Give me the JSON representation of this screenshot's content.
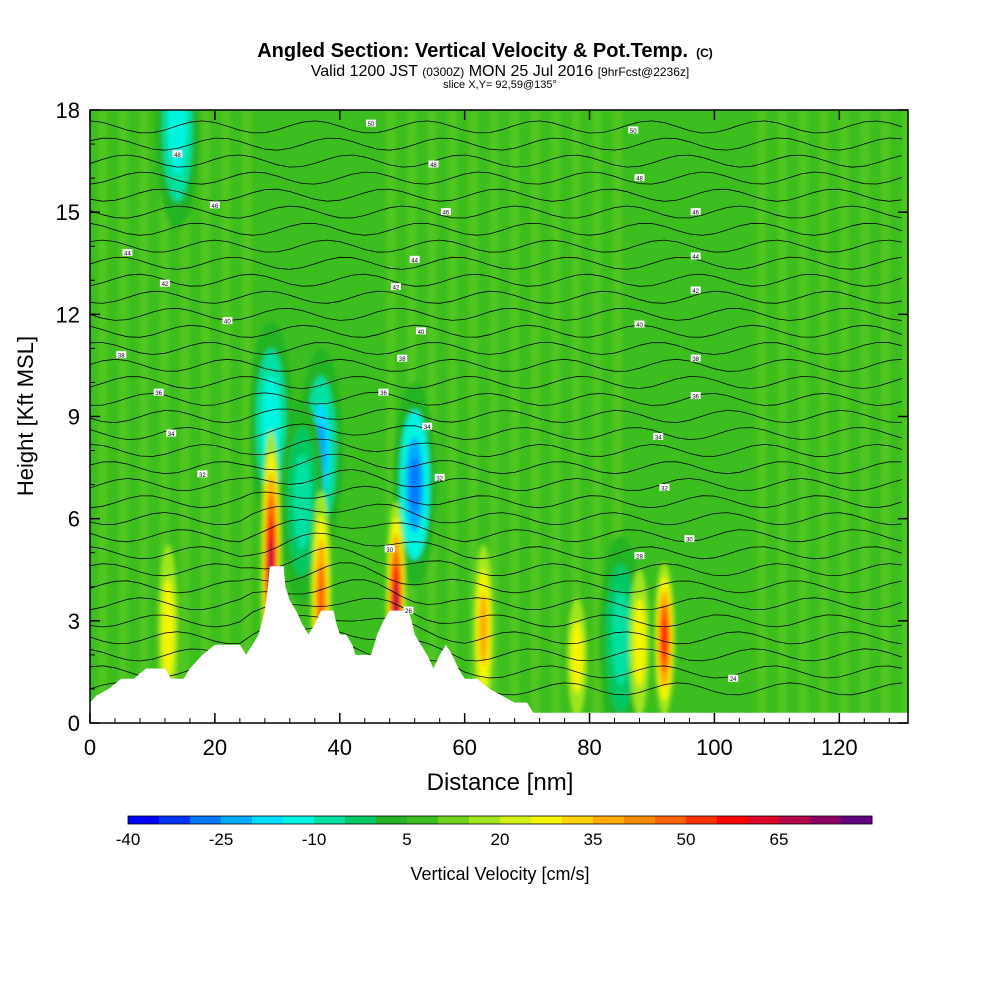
{
  "chart_data": {
    "type": "heatmap",
    "title": {
      "main": "Angled Section: Vertical Velocity & Pot.Temp.",
      "unit": "(C)"
    },
    "subtitle": {
      "valid": "Valid 1200 JST",
      "zulu": "(0300Z)",
      "date": "MON 25 Jul 2016",
      "forecast": "[9hrFcst@2236z]"
    },
    "slice_label": "slice X,Y= 92,59@135°",
    "xlabel": "Distance [nm]",
    "ylabel": "Height [Kft MSL]",
    "xlim": [
      0,
      131
    ],
    "ylim": [
      0,
      18
    ],
    "x_ticks": [
      "0",
      "20",
      "40",
      "60",
      "80",
      "100",
      "120"
    ],
    "y_ticks": [
      "0",
      "3",
      "6",
      "9",
      "12",
      "15",
      "18"
    ],
    "colorbar": {
      "label": "Vertical Velocity [cm/s]",
      "levels": [
        -40,
        -35,
        -30,
        -25,
        -20,
        -15,
        -10,
        -5,
        0,
        5,
        10,
        15,
        20,
        25,
        30,
        35,
        40,
        45,
        50,
        55,
        60,
        65,
        70,
        75
      ],
      "tick_labels": [
        "-40",
        "-25",
        "-10",
        "5",
        "20",
        "35",
        "50",
        "65"
      ],
      "colors": [
        "#0000ff",
        "#0033ff",
        "#0077ff",
        "#00aaff",
        "#00ddff",
        "#00f5e0",
        "#00e0a0",
        "#00c864",
        "#22b422",
        "#3cbe1e",
        "#6ed21e",
        "#a0e61e",
        "#d2f014",
        "#f5f500",
        "#ffd200",
        "#ffaa00",
        "#ff8c00",
        "#ff6400",
        "#ff3200",
        "#ff0000",
        "#dc0028",
        "#b40046",
        "#8c0064",
        "#640082"
      ]
    },
    "background_range": "0 to 5 cm/s",
    "updraft_cores": [
      {
        "x": 29,
        "top": 8.2,
        "peak": 65
      },
      {
        "x": 37,
        "top": 6.5,
        "peak": 45
      },
      {
        "x": 49,
        "top": 6.2,
        "peak": 65
      },
      {
        "x": 63,
        "top": 5.0,
        "peak": 40
      },
      {
        "x": 92,
        "top": 4.5,
        "peak": 55
      },
      {
        "x": 88,
        "top": 4.3,
        "peak": 30
      },
      {
        "x": 78,
        "top": 3.5,
        "peak": 25
      },
      {
        "x": 12.5,
        "top": 5.0,
        "peak": 25
      }
    ],
    "downdraft_regions": [
      {
        "x": 37,
        "y": 8.0,
        "min": -25
      },
      {
        "x": 52,
        "y": 7.0,
        "min": -30
      },
      {
        "x": 29,
        "y": 8.8,
        "min": -15
      },
      {
        "x": 34,
        "y": 6.5,
        "min": -10
      },
      {
        "x": 85,
        "y": 2.5,
        "min": -10
      },
      {
        "x": 14,
        "y": 17.5,
        "min": -15
      }
    ],
    "theta_contour_labels": [
      {
        "x": 45,
        "y": 17.6,
        "label": "50"
      },
      {
        "x": 87,
        "y": 17.4,
        "label": "50"
      },
      {
        "x": 14,
        "y": 16.7,
        "label": "48"
      },
      {
        "x": 55,
        "y": 16.4,
        "label": "48"
      },
      {
        "x": 88,
        "y": 16.0,
        "label": "48"
      },
      {
        "x": 20,
        "y": 15.2,
        "label": "46"
      },
      {
        "x": 57,
        "y": 15.0,
        "label": "46"
      },
      {
        "x": 97,
        "y": 15.0,
        "label": "46"
      },
      {
        "x": 6,
        "y": 13.8,
        "label": "44"
      },
      {
        "x": 52,
        "y": 13.6,
        "label": "44"
      },
      {
        "x": 97,
        "y": 13.7,
        "label": "44"
      },
      {
        "x": 12,
        "y": 12.9,
        "label": "42"
      },
      {
        "x": 49,
        "y": 12.8,
        "label": "42"
      },
      {
        "x": 97,
        "y": 12.7,
        "label": "42"
      },
      {
        "x": 22,
        "y": 11.8,
        "label": "40"
      },
      {
        "x": 53,
        "y": 11.5,
        "label": "40"
      },
      {
        "x": 88,
        "y": 11.7,
        "label": "40"
      },
      {
        "x": 5,
        "y": 10.8,
        "label": "38"
      },
      {
        "x": 50,
        "y": 10.7,
        "label": "38"
      },
      {
        "x": 97,
        "y": 10.7,
        "label": "38"
      },
      {
        "x": 11,
        "y": 9.7,
        "label": "36"
      },
      {
        "x": 47,
        "y": 9.7,
        "label": "36"
      },
      {
        "x": 97,
        "y": 9.6,
        "label": "36"
      },
      {
        "x": 13,
        "y": 8.5,
        "label": "34"
      },
      {
        "x": 54,
        "y": 8.7,
        "label": "34"
      },
      {
        "x": 91,
        "y": 8.4,
        "label": "34"
      },
      {
        "x": 18,
        "y": 7.3,
        "label": "32"
      },
      {
        "x": 56,
        "y": 7.2,
        "label": "32"
      },
      {
        "x": 92,
        "y": 6.9,
        "label": "32"
      },
      {
        "x": 48,
        "y": 5.1,
        "label": "30"
      },
      {
        "x": 96,
        "y": 5.4,
        "label": "30"
      },
      {
        "x": 88,
        "y": 4.9,
        "label": "28"
      },
      {
        "x": 51,
        "y": 3.3,
        "label": "26"
      },
      {
        "x": 103,
        "y": 1.3,
        "label": "24"
      }
    ],
    "terrain": [
      [
        0,
        0.6
      ],
      [
        1,
        0.8
      ],
      [
        3,
        1.0
      ],
      [
        5,
        1.3
      ],
      [
        7,
        1.3
      ],
      [
        9,
        1.6
      ],
      [
        12,
        1.6
      ],
      [
        13,
        1.3
      ],
      [
        15,
        1.3
      ],
      [
        16,
        1.6
      ],
      [
        18,
        2.0
      ],
      [
        20,
        2.3
      ],
      [
        24,
        2.3
      ],
      [
        25,
        2.0
      ],
      [
        26,
        2.3
      ],
      [
        27,
        2.6
      ],
      [
        28,
        3.3
      ],
      [
        28.5,
        4.0
      ],
      [
        28.8,
        4.6
      ],
      [
        31,
        4.6
      ],
      [
        31.3,
        4.0
      ],
      [
        32,
        3.6
      ],
      [
        33,
        3.3
      ],
      [
        34,
        2.9
      ],
      [
        35,
        2.6
      ],
      [
        36,
        2.9
      ],
      [
        37,
        3.3
      ],
      [
        39,
        3.3
      ],
      [
        39.5,
        2.9
      ],
      [
        40,
        2.6
      ],
      [
        41,
        2.6
      ],
      [
        42,
        2.3
      ],
      [
        42.5,
        2.0
      ],
      [
        45,
        2.0
      ],
      [
        45.5,
        2.3
      ],
      [
        46,
        2.6
      ],
      [
        47,
        3.0
      ],
      [
        48,
        3.3
      ],
      [
        51,
        3.3
      ],
      [
        51.5,
        3.0
      ],
      [
        52,
        2.6
      ],
      [
        53,
        2.3
      ],
      [
        54,
        2.0
      ],
      [
        55,
        1.6
      ],
      [
        56,
        2.0
      ],
      [
        57,
        2.3
      ],
      [
        58,
        2.0
      ],
      [
        59,
        1.6
      ],
      [
        60,
        1.3
      ],
      [
        62,
        1.3
      ],
      [
        64,
        1.0
      ],
      [
        66,
        0.8
      ],
      [
        68,
        0.6
      ],
      [
        70,
        0.6
      ],
      [
        71,
        0.3
      ],
      [
        131,
        0.3
      ]
    ]
  }
}
